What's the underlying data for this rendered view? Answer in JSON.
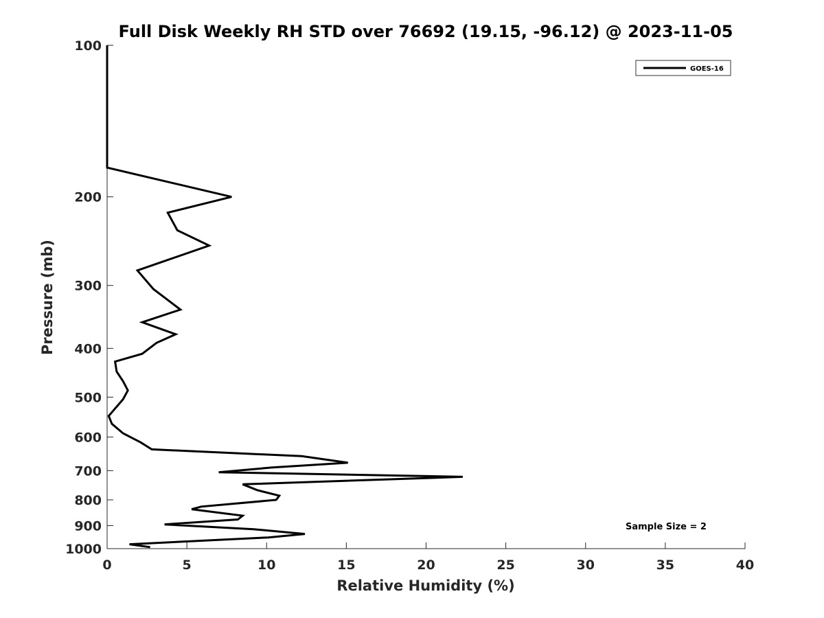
{
  "chart_data": {
    "type": "line",
    "title": "Full Disk Weekly RH STD over 76692 (19.15, -96.12) @ 2023-11-05",
    "xlabel": "Relative Humidity (%)",
    "ylabel": "Pressure (mb)",
    "xlim": [
      0,
      40
    ],
    "ylim": [
      100,
      1000
    ],
    "yscale": "log",
    "y_reversed": true,
    "grid": false,
    "legend_position": "top-right",
    "x_ticks": [
      0,
      5,
      10,
      15,
      20,
      25,
      30,
      35,
      40
    ],
    "y_ticks": [
      100,
      200,
      300,
      400,
      500,
      600,
      700,
      800,
      900,
      1000
    ],
    "annotation": "Sample Size = 2",
    "series": [
      {
        "name": "GOES-16",
        "color": "#000000",
        "rh": [
          0,
          0,
          7.8,
          3.8,
          4.4,
          6.4,
          1.9,
          2.9,
          4.6,
          2.2,
          4.3,
          3.1,
          2.2,
          0.5,
          0.6,
          1.0,
          1.3,
          1.0,
          0.1,
          0.3,
          1.0,
          2.1,
          2.8,
          12.2,
          15.1,
          10.3,
          7.0,
          22.3,
          8.5,
          9.4,
          10.8,
          10.6,
          5.9,
          5.3,
          8.5,
          8.2,
          3.6,
          9.2,
          12.4,
          10.1,
          1.4,
          2.7
        ],
        "pressure": [
          100,
          175,
          200,
          215,
          233,
          250,
          280,
          305,
          335,
          355,
          375,
          390,
          410,
          425,
          445,
          465,
          485,
          505,
          545,
          565,
          590,
          615,
          635,
          655,
          675,
          690,
          705,
          720,
          745,
          765,
          785,
          800,
          825,
          835,
          860,
          875,
          895,
          915,
          935,
          950,
          980,
          993
        ]
      }
    ]
  }
}
